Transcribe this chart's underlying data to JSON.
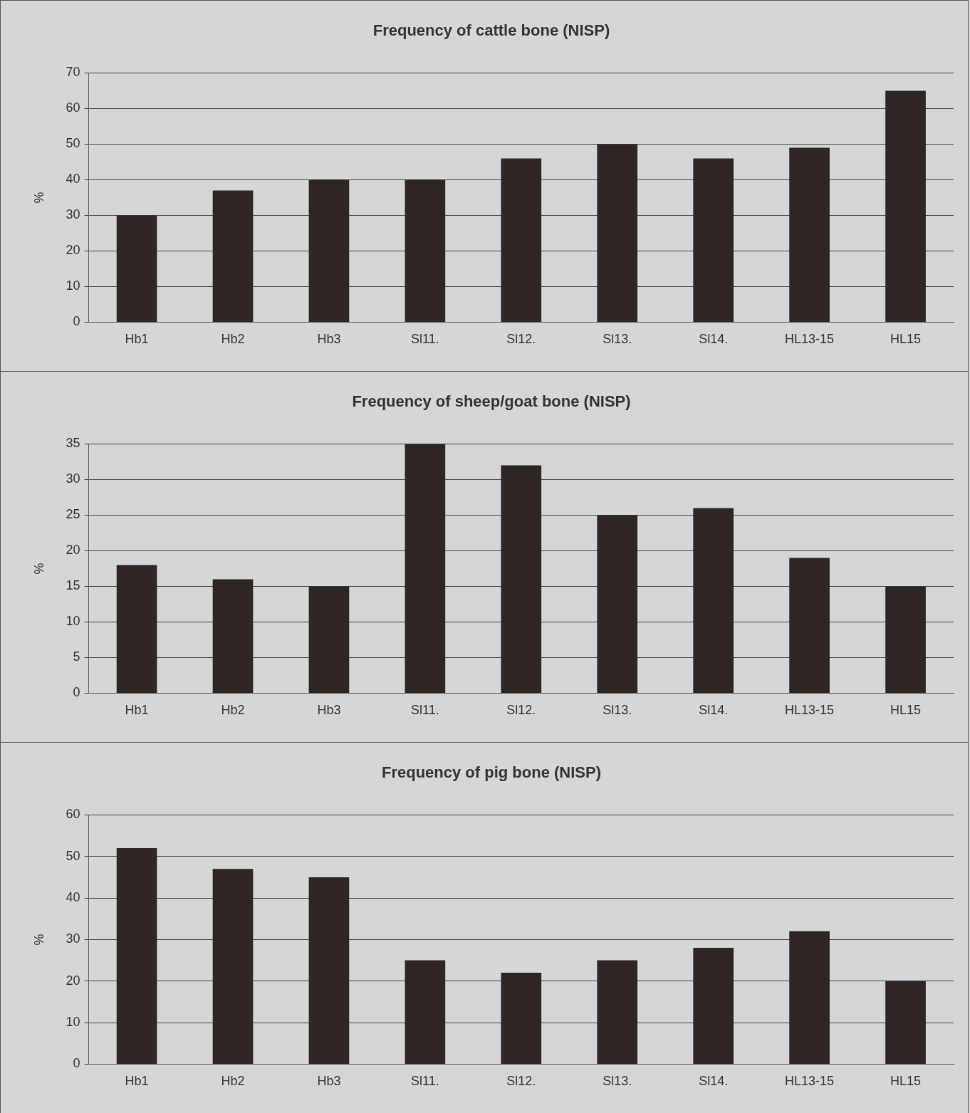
{
  "chart_data": [
    {
      "type": "bar",
      "title": "Frequency of cattle bone (NISP)",
      "ylabel": "%",
      "categories": [
        "Hb1",
        "Hb2",
        "Hb3",
        "Sl11.",
        "Sl12.",
        "Sl13.",
        "Sl14.",
        "HL13-15",
        "HL15"
      ],
      "values": [
        30,
        37,
        40,
        40,
        46,
        50,
        46,
        49,
        65
      ],
      "color": "#2e2622",
      "ylim": [
        0,
        70
      ],
      "yticks": [
        0,
        10,
        20,
        30,
        40,
        50,
        60,
        70
      ],
      "grid": "y",
      "legend": false
    },
    {
      "type": "bar",
      "title": "Frequency of sheep/goat bone (NISP)",
      "ylabel": "%",
      "categories": [
        "Hb1",
        "Hb2",
        "Hb3",
        "Sl11.",
        "Sl12.",
        "Sl13.",
        "Sl14.",
        "HL13-15",
        "HL15"
      ],
      "values": [
        18,
        16,
        15,
        35,
        32,
        25,
        26,
        19,
        15
      ],
      "color": "#2e2622",
      "ylim": [
        0,
        35
      ],
      "yticks": [
        0,
        5,
        10,
        15,
        20,
        25,
        30,
        35
      ],
      "grid": "y",
      "legend": false
    },
    {
      "type": "bar",
      "title": "Frequency of pig bone (NISP)",
      "ylabel": "%",
      "categories": [
        "Hb1",
        "Hb2",
        "Hb3",
        "Sl11.",
        "Sl12.",
        "Sl13.",
        "Sl14.",
        "HL13-15",
        "HL15"
      ],
      "values": [
        52,
        47,
        45,
        25,
        22,
        25,
        28,
        32,
        20
      ],
      "color": "#2e2622",
      "ylim": [
        0,
        60
      ],
      "yticks": [
        0,
        10,
        20,
        30,
        40,
        50,
        60
      ],
      "grid": "y",
      "legend": false
    }
  ]
}
